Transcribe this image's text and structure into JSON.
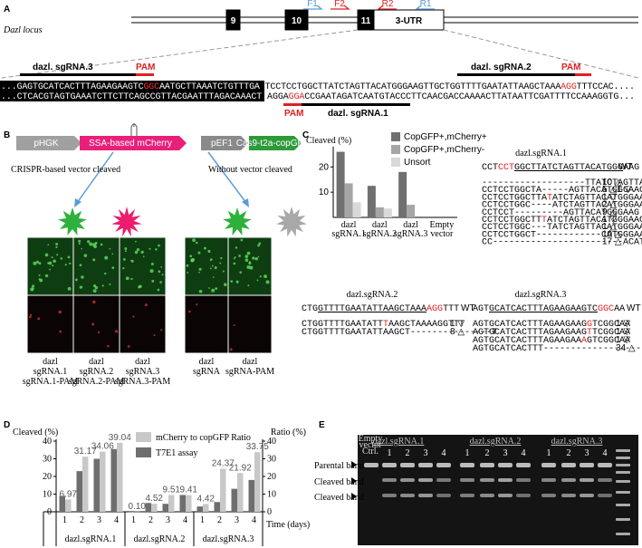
{
  "panel_a": {
    "label": "A",
    "locus": "Dazl locus",
    "exons": [
      "9",
      "10",
      "11",
      "3-UTR"
    ],
    "primers": [
      {
        "name": "F1",
        "color": "#5b9bd5"
      },
      {
        "name": "F2",
        "color": "#e02020"
      },
      {
        "name": "R2",
        "color": "#e02020"
      },
      {
        "name": "R1",
        "color": "#5b9bd5"
      }
    ],
    "top_sequence": [
      {
        "text": "...GAGTGCATCACTTTAGAAGAAGTC",
        "color": "#ffffff"
      },
      {
        "text": "GGC",
        "color": "#ff3030"
      },
      {
        "text": "AATGCTTAAATCTGTTTGA ",
        "color": "#ffffff"
      },
      {
        "text": "TCCTCCTGGCTTATCTAGTTACATGGGAAGTTGCTGGTTTTGAATATTAAGCTAAA",
        "color": "#000000"
      },
      {
        "text": "AGG",
        "color": "#e02020"
      },
      {
        "text": "TTTCCAC....",
        "color": "#000000"
      }
    ],
    "bottom_sequence": [
      {
        "text": "...CTCACGTAGTGAAATCTTCTTCAGCCGTTACGAATTTAGACAAACT ",
        "color": "#ffffff"
      },
      {
        "text": "AGGA",
        "color": "#000000"
      },
      {
        "text": "GGA",
        "color": "#e02020"
      },
      {
        "text": "CCGAATAGATCAATGTACCCTTCAACGACCAAAACTTATAATTCGATTTTCCAAAGGTG...",
        "color": "#000000"
      }
    ],
    "sgrnas": [
      "dazl. sgRNA.3",
      "dazl. sgRNA.2",
      "dazl. sgRNA.1"
    ],
    "pam": "PAM"
  },
  "panel_b": {
    "label": "B",
    "vector": [
      "pHGK",
      "SSA-based mCherry",
      "pEF1",
      "Cas9-t2a-copGFP"
    ],
    "branches": [
      "CRISPR-based vector cleaved",
      "Without vector cleaved"
    ],
    "images": [
      [
        "dazl",
        "sgRNA.1",
        "sgRNA.1-PAM"
      ],
      [
        "dazl",
        "sgRNA.2",
        "sgRNA.2-PAM"
      ],
      [
        "dazl",
        "sgRNA.3",
        "sgRNA.3-PAM"
      ],
      [
        "dazl",
        "sgRNA"
      ],
      [
        "dazl",
        "sgRNA-PAM"
      ]
    ]
  },
  "panel_c": {
    "label": "C",
    "tables": [
      {
        "title": "dazl.sgRNA.1",
        "wt": "WT",
        "header": [
          {
            "text": "CCT",
            "color": "#000000"
          },
          {
            "text": "CCT",
            "color": "#e02020"
          },
          {
            "text": "GGCTTATCTAGTTACATGGG",
            "color": "#000000",
            "underline": true
          },
          {
            "text": "AAG",
            "color": "#000000"
          }
        ],
        "rows": [
          {
            "seq": [
              {
                "text": "-------------------TTATCTAGTTACATGGGAAG",
                "color": "#000000"
              }
            ],
            "count": "10 △"
          },
          {
            "seq": [
              {
                "text": "CCTCCTGGCTA-----AGTTACATGGGAAG",
                "color": "#000000"
              }
            ],
            "count": "5 △1 ▽"
          },
          {
            "seq": [
              {
                "text": "CCTCCTGGCTTA",
                "color": "#000000"
              },
              {
                "text": "T",
                "color": "#e02020"
              },
              {
                "text": "ATCTAGTTACATGGGAAG",
                "color": "#000000"
              }
            ],
            "count": "1 ▽"
          },
          {
            "seq": [
              {
                "text": "CCTCCTGGC----ATCTAGTTACATGGGAAG",
                "color": "#000000"
              }
            ],
            "count": "2 △"
          },
          {
            "seq": [
              {
                "text": "CCTCCT---------AGTTACATGGGAAG",
                "color": "#000000"
              }
            ],
            "count": "9 △"
          },
          {
            "seq": [
              {
                "text": "CCTCCTGGCTT",
                "color": "#000000"
              },
              {
                "text": "T",
                "color": "#e02020"
              },
              {
                "text": "ATCTAGTTACATGGGAAG",
                "color": "#000000"
              }
            ],
            "count": "1 ▽"
          },
          {
            "seq": [
              {
                "text": "CCTCCTGGC---TATCTAGTTACATGGGAAG",
                "color": "#000000"
              }
            ],
            "count": "1 △"
          },
          {
            "seq": [
              {
                "text": "CCTCCTGGCT------------CATGGGAAG",
                "color": "#000000"
              }
            ],
            "count": "10 △"
          },
          {
            "seq": [
              {
                "text": "CC------------------------ACATGGGAAG",
                "color": "#000000"
              }
            ],
            "count": "17 △"
          }
        ]
      },
      {
        "title": "dazl.sgRNA.2",
        "wt": "WT",
        "header": [
          {
            "text": "CTG",
            "color": "#000000"
          },
          {
            "text": "GTTTTGAATATTAAGCTAAA",
            "color": "#000000",
            "underline": true
          },
          {
            "text": "AGG",
            "color": "#e02020"
          },
          {
            "text": "TTT",
            "color": "#000000"
          }
        ],
        "rows": [
          {
            "seq": [
              {
                "text": "CTGGTTTTGAATATT",
                "color": "#000000"
              },
              {
                "text": "T",
                "color": "#e02020"
              },
              {
                "text": "AAGCTAAAAGGTTT",
                "color": "#000000"
              }
            ],
            "count": "1 ▽"
          },
          {
            "seq": [
              {
                "text": "CTGGTTTTGAATATTAAGCT---------------T",
                "color": "#000000"
              }
            ],
            "count": "8 △"
          }
        ]
      },
      {
        "title": "dazl.sgRNA.3",
        "wt": "WT",
        "header": [
          {
            "text": "AGT",
            "color": "#000000"
          },
          {
            "text": "GCATCACTTTAGAAGAAGTC",
            "color": "#000000",
            "underline": true
          },
          {
            "text": "GGC",
            "color": "#e02020"
          },
          {
            "text": "AA",
            "color": "#000000"
          }
        ],
        "rows": [
          {
            "seq": [
              {
                "text": "AGTGCATCACTTTAGAAGAAG",
                "color": "#000000"
              },
              {
                "text": "G",
                "color": "#e02020"
              },
              {
                "text": "TCGGCAA",
                "color": "#000000"
              }
            ],
            "count": "1 ▽"
          },
          {
            "seq": [
              {
                "text": "AGTGCATCACTTTAGAAGAAG",
                "color": "#000000"
              },
              {
                "text": "T",
                "color": "#e02020"
              },
              {
                "text": "TCGGCAA",
                "color": "#000000"
              }
            ],
            "count": "1 ▽"
          },
          {
            "seq": [
              {
                "text": "AGTGCATCACTTTAGAAGAA",
                "color": "#000000"
              },
              {
                "text": "A",
                "color": "#e02020"
              },
              {
                "text": "GTCGGCAA",
                "color": "#000000"
              }
            ],
            "count": "1 ▽"
          },
          {
            "seq": [
              {
                "text": "AGTGCATCACTTT--------------------",
                "color": "#000000"
              }
            ],
            "count": "34 △"
          }
        ]
      }
    ]
  },
  "panel_d": {
    "label": "D",
    "groups": [
      "dazl.sgRNA.1",
      "dazl.sgRNA.2",
      "dazl.sgRNA.3"
    ]
  },
  "panel_e": {
    "label": "E",
    "ctrl": [
      "Empty",
      "vector",
      "Ctrl."
    ],
    "groups": [
      "dazl.sgRNA.1",
      "dazl.sgRNA.2",
      "dazl.sgRNA.3"
    ],
    "lanes": [
      "1",
      "2",
      "3",
      "4"
    ],
    "bands": [
      "Parental band",
      "Cleaved band",
      "Cleaved band"
    ]
  },
  "chart_data": [
    {
      "type": "bar",
      "ylabel": "Cleaved (%)",
      "categories": [
        [
          "dazl",
          "sgRNA.1"
        ],
        [
          "dazl",
          "sgRNA.2"
        ],
        [
          "dazl",
          "sgRNA.3"
        ],
        [
          "Empty",
          "vector"
        ]
      ],
      "series": [
        {
          "name": "CopGFP+,mCherry+",
          "color": "#707070",
          "values": [
            26,
            12.5,
            18,
            null
          ]
        },
        {
          "name": "CopGFP+,mCherry-",
          "color": "#a6a6a6",
          "values": [
            13.5,
            4,
            5,
            null
          ]
        },
        {
          "name": "Unsort",
          "color": "#d9d9d9",
          "values": [
            6,
            3.5,
            null,
            null
          ]
        }
      ],
      "ylim": [
        0,
        28
      ],
      "yticks": [
        10,
        20
      ],
      "legend": "upper right"
    },
    {
      "type": "bar",
      "ylabel": "Cleaved (%)",
      "y2label": "Ratio (%)",
      "xlabel": "Time (days)",
      "categories": [
        "1",
        "2",
        "3",
        "4",
        "1",
        "2",
        "3",
        "4",
        "1",
        "2",
        "3",
        "4"
      ],
      "series": [
        {
          "name": "mCherry to copGFP Ratio",
          "color": "#c8c8c8",
          "axis": "y2",
          "values": [
            6.97,
            31.17,
            34.06,
            39.04,
            0.1,
            4.52,
            9.51,
            9.41,
            4.42,
            24.37,
            21.92,
            33.75
          ],
          "value_labels": [
            "6.97",
            "31.17",
            "34.06",
            "39.04",
            "0.10",
            "4.52",
            "9.51",
            "9.41",
            "4.42",
            "24.37",
            "21.92",
            "33.75"
          ]
        },
        {
          "name": "T7E1 assay",
          "color": "#6e6e6e",
          "values": [
            9,
            23,
            30,
            35.5,
            0,
            5,
            4.5,
            9.5,
            3,
            5.5,
            13,
            18
          ]
        }
      ],
      "ylim": [
        0,
        40
      ],
      "yticks": [
        0,
        10,
        20,
        30,
        40
      ],
      "y2lim": [
        0,
        40
      ],
      "y2ticks": [
        0,
        10,
        20,
        30,
        40
      ],
      "legend": "upper right"
    }
  ]
}
